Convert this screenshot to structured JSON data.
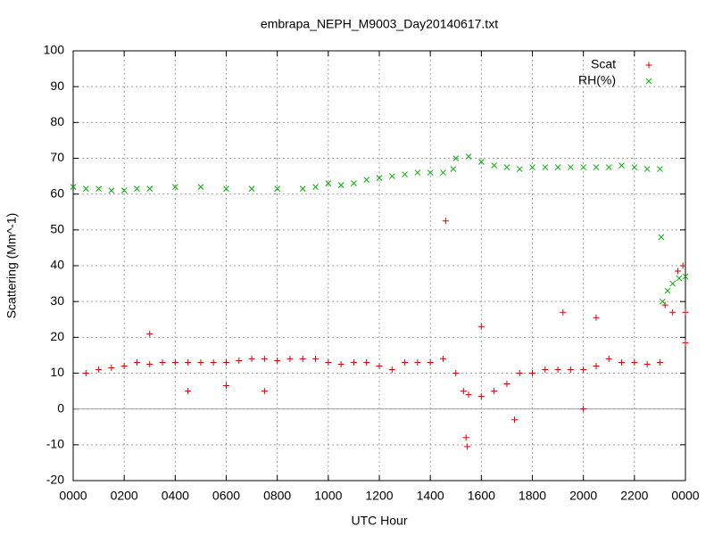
{
  "chart_data": {
    "type": "scatter",
    "title": "embrapa_NEPH_M9003_Day20140617.txt",
    "xlabel": "UTC Hour",
    "ylabel": "Scattering (Mm^-1)",
    "xlim": [
      0,
      24
    ],
    "ylim": [
      -20,
      100
    ],
    "xticks": [
      {
        "value": 0,
        "label": "0000"
      },
      {
        "value": 2,
        "label": "0200"
      },
      {
        "value": 4,
        "label": "0400"
      },
      {
        "value": 6,
        "label": "0600"
      },
      {
        "value": 8,
        "label": "0800"
      },
      {
        "value": 10,
        "label": "1000"
      },
      {
        "value": 12,
        "label": "1200"
      },
      {
        "value": 14,
        "label": "1400"
      },
      {
        "value": 16,
        "label": "1600"
      },
      {
        "value": 18,
        "label": "1800"
      },
      {
        "value": 20,
        "label": "2000"
      },
      {
        "value": 22,
        "label": "2200"
      },
      {
        "value": 24,
        "label": "0000"
      }
    ],
    "yticks": [
      -20,
      -10,
      0,
      10,
      20,
      30,
      40,
      50,
      60,
      70,
      80,
      90,
      100
    ],
    "grid": true,
    "legend": "top-right",
    "series": [
      {
        "name": "Scat",
        "color": "#e00000",
        "marker": "plus",
        "x": [
          0.5,
          1,
          1.5,
          2,
          2.5,
          3,
          3.5,
          4,
          4.5,
          5,
          5.5,
          6,
          6.5,
          7,
          7.5,
          8,
          8.5,
          9,
          9.5,
          10,
          10.5,
          11,
          11.5,
          12,
          12.5,
          13,
          13.5,
          14,
          14.5,
          15,
          15.3,
          15.5,
          16,
          16.5,
          17,
          17.5,
          18,
          18.5,
          19,
          19.5,
          20,
          20.5,
          21,
          21.5,
          22,
          22.5,
          23,
          23.2,
          23.5,
          24,
          3,
          14.6,
          15.4,
          15.45,
          16,
          17.3,
          19.2,
          20,
          20.5,
          24,
          23.7,
          23.9,
          7.5,
          4.5,
          6
        ],
        "values": [
          10,
          11,
          11.5,
          12,
          13,
          12.5,
          13,
          13,
          13,
          13,
          13,
          13,
          13.5,
          14,
          14,
          13.5,
          14,
          14,
          14,
          13,
          12.5,
          13,
          13,
          12,
          11,
          13,
          13,
          13,
          14,
          10,
          5,
          4,
          3.5,
          5,
          7,
          10,
          10,
          11,
          11,
          11,
          11,
          12,
          14,
          13,
          13,
          12.5,
          13,
          29,
          27,
          27,
          21,
          52.5,
          -8,
          -10.5,
          23,
          -3,
          27,
          0,
          25.5,
          18.5,
          38.5,
          40,
          5,
          5,
          6.5
        ]
      },
      {
        "name": "RH(%)",
        "color": "#00b000",
        "marker": "cross",
        "x": [
          0,
          0.5,
          1,
          1.5,
          2,
          2.5,
          3,
          4,
          5,
          6,
          7,
          8,
          9,
          9.5,
          10,
          10.5,
          11,
          11.5,
          12,
          12.5,
          13,
          13.5,
          14,
          14.5,
          14.9,
          15,
          15.5,
          16,
          16.5,
          17,
          17.5,
          18,
          18.5,
          19,
          19.5,
          20,
          20.5,
          21,
          21.5,
          22,
          22.5,
          23,
          23.05,
          23.1,
          23.3,
          23.5,
          23.75,
          24
        ],
        "values": [
          62,
          61.5,
          61.5,
          61,
          61,
          61.5,
          61.5,
          62,
          62,
          61.5,
          61.5,
          61.5,
          61.5,
          62,
          63,
          62.5,
          63,
          64,
          64.5,
          65,
          65.5,
          66,
          66,
          66,
          67,
          70,
          70.5,
          69,
          68,
          67.5,
          67,
          67.5,
          67.5,
          67.5,
          67.5,
          67.5,
          67.5,
          67.5,
          68,
          67.5,
          67,
          67,
          48,
          30,
          33,
          35,
          36.5,
          37
        ]
      }
    ]
  }
}
